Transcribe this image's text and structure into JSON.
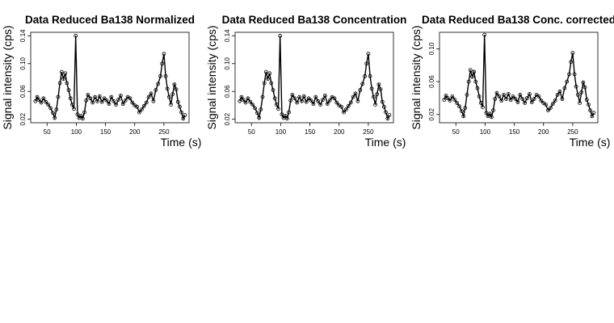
{
  "chart_data": [
    {
      "type": "line",
      "title": "Data Reduced Ba138 Normalized",
      "xlabel": "Time (s)",
      "ylabel": "Signal intensity (cps)",
      "xlim": [
        22,
        293
      ],
      "ylim": [
        0.015,
        0.145
      ],
      "xticks": [
        50,
        100,
        150,
        200,
        250
      ],
      "yticks": [
        0.02,
        0.06,
        0.1,
        0.14
      ],
      "ytick_labels": [
        "0.02",
        "0.06",
        "0.10",
        "0.14"
      ],
      "series": [
        {
          "style": "points with connecting line",
          "x": [
            30,
            33,
            36,
            40,
            44,
            48,
            52,
            56,
            60,
            63,
            66,
            69,
            72,
            75,
            78,
            81,
            84,
            87,
            90,
            93,
            96,
            99,
            102,
            105,
            108,
            111,
            114,
            117,
            120,
            124,
            128,
            132,
            136,
            140,
            144,
            148,
            152,
            156,
            160,
            164,
            168,
            172,
            176,
            180,
            184,
            188,
            192,
            196,
            200,
            204,
            208,
            212,
            216,
            220,
            224,
            228,
            232,
            236,
            240,
            244,
            247,
            250,
            253,
            256,
            259,
            262,
            265,
            268,
            271,
            274,
            277,
            280,
            283,
            286
          ],
          "y": [
            0.046,
            0.052,
            0.048,
            0.044,
            0.05,
            0.045,
            0.041,
            0.036,
            0.029,
            0.022,
            0.034,
            0.052,
            0.072,
            0.088,
            0.078,
            0.086,
            0.072,
            0.062,
            0.05,
            0.041,
            0.035,
            0.14,
            0.027,
            0.022,
            0.025,
            0.021,
            0.03,
            0.047,
            0.055,
            0.05,
            0.044,
            0.052,
            0.046,
            0.053,
            0.045,
            0.05,
            0.047,
            0.042,
            0.052,
            0.046,
            0.041,
            0.048,
            0.054,
            0.042,
            0.047,
            0.052,
            0.05,
            0.044,
            0.04,
            0.038,
            0.03,
            0.034,
            0.039,
            0.044,
            0.052,
            0.057,
            0.046,
            0.062,
            0.071,
            0.082,
            0.1,
            0.114,
            0.082,
            0.064,
            0.052,
            0.041,
            0.056,
            0.07,
            0.063,
            0.045,
            0.038,
            0.03,
            0.021,
            0.026
          ]
        }
      ]
    },
    {
      "type": "line",
      "title": "Data Reduced Ba138 Concentration",
      "xlabel": "Time (s)",
      "ylabel": "Signal intensity (cps)",
      "xlim": [
        22,
        293
      ],
      "ylim": [
        0.015,
        0.145
      ],
      "xticks": [
        50,
        100,
        150,
        200,
        250
      ],
      "yticks": [
        0.02,
        0.06,
        0.1,
        0.14
      ],
      "ytick_labels": [
        "0.02",
        "0.06",
        "0.10",
        "0.14"
      ],
      "series": [
        {
          "style": "points with connecting line",
          "x": [
            30,
            33,
            36,
            40,
            44,
            48,
            52,
            56,
            60,
            63,
            66,
            69,
            72,
            75,
            78,
            81,
            84,
            87,
            90,
            93,
            96,
            99,
            102,
            105,
            108,
            111,
            114,
            117,
            120,
            124,
            128,
            132,
            136,
            140,
            144,
            148,
            152,
            156,
            160,
            164,
            168,
            172,
            176,
            180,
            184,
            188,
            192,
            196,
            200,
            204,
            208,
            212,
            216,
            220,
            224,
            228,
            232,
            236,
            240,
            244,
            247,
            250,
            253,
            256,
            259,
            262,
            265,
            268,
            271,
            274,
            277,
            280,
            283,
            286
          ],
          "y": [
            0.046,
            0.052,
            0.048,
            0.044,
            0.05,
            0.045,
            0.041,
            0.036,
            0.029,
            0.022,
            0.034,
            0.052,
            0.072,
            0.088,
            0.078,
            0.086,
            0.072,
            0.062,
            0.05,
            0.041,
            0.035,
            0.14,
            0.027,
            0.022,
            0.025,
            0.021,
            0.03,
            0.047,
            0.055,
            0.05,
            0.044,
            0.052,
            0.046,
            0.053,
            0.045,
            0.05,
            0.047,
            0.042,
            0.052,
            0.046,
            0.041,
            0.048,
            0.054,
            0.042,
            0.047,
            0.052,
            0.05,
            0.044,
            0.04,
            0.038,
            0.03,
            0.034,
            0.039,
            0.044,
            0.052,
            0.057,
            0.046,
            0.062,
            0.071,
            0.082,
            0.1,
            0.114,
            0.082,
            0.064,
            0.052,
            0.041,
            0.056,
            0.07,
            0.063,
            0.045,
            0.038,
            0.03,
            0.021,
            0.026
          ]
        }
      ]
    },
    {
      "type": "line",
      "title": "Data Reduced Ba138 Conc. corrected",
      "xlabel": "Time (s)",
      "ylabel": "Signal intensity (cps)",
      "xlim": [
        22,
        293
      ],
      "ylim": [
        0.01,
        0.12
      ],
      "xticks": [
        50,
        100,
        150,
        200,
        250
      ],
      "yticks": [
        0.02,
        0.06,
        0.1
      ],
      "ytick_labels": [
        "0.02",
        "0.06",
        "0.10"
      ],
      "series": [
        {
          "style": "points with connecting line",
          "x": [
            30,
            33,
            36,
            40,
            44,
            48,
            52,
            56,
            60,
            63,
            66,
            69,
            72,
            75,
            78,
            81,
            84,
            87,
            90,
            93,
            96,
            99,
            102,
            105,
            108,
            111,
            114,
            117,
            120,
            124,
            128,
            132,
            136,
            140,
            144,
            148,
            152,
            156,
            160,
            164,
            168,
            172,
            176,
            180,
            184,
            188,
            192,
            196,
            200,
            204,
            208,
            212,
            216,
            220,
            224,
            228,
            232,
            236,
            240,
            244,
            247,
            250,
            253,
            256,
            259,
            262,
            265,
            268,
            271,
            274,
            277,
            280,
            283,
            286
          ],
          "y": [
            0.038,
            0.043,
            0.04,
            0.037,
            0.042,
            0.038,
            0.034,
            0.03,
            0.024,
            0.018,
            0.028,
            0.044,
            0.06,
            0.074,
            0.066,
            0.072,
            0.06,
            0.052,
            0.042,
            0.034,
            0.029,
            0.117,
            0.022,
            0.018,
            0.021,
            0.017,
            0.025,
            0.039,
            0.046,
            0.042,
            0.037,
            0.044,
            0.039,
            0.045,
            0.038,
            0.042,
            0.039,
            0.035,
            0.044,
            0.039,
            0.034,
            0.04,
            0.045,
            0.035,
            0.039,
            0.044,
            0.042,
            0.037,
            0.034,
            0.032,
            0.025,
            0.028,
            0.033,
            0.037,
            0.044,
            0.048,
            0.039,
            0.052,
            0.06,
            0.069,
            0.084,
            0.095,
            0.069,
            0.054,
            0.044,
            0.034,
            0.047,
            0.059,
            0.053,
            0.038,
            0.032,
            0.025,
            0.018,
            0.022
          ]
        }
      ]
    }
  ]
}
